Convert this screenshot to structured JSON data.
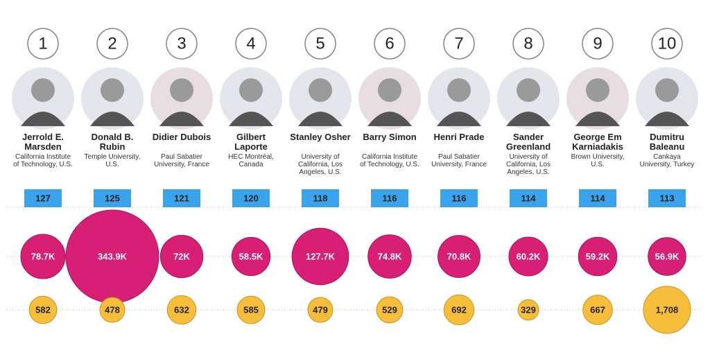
{
  "chart_data": {
    "type": "bubble",
    "ranks": [
      1,
      2,
      3,
      4,
      5,
      6,
      7,
      8,
      9,
      10
    ],
    "categories": [
      "Jerrold E. Marsden",
      "Donald B. Rubin",
      "Didier Dubois",
      "Gilbert Laporte",
      "Stanley Osher",
      "Barry Simon",
      "Henri Prade",
      "Sander Greenland",
      "George Em Karniadakis",
      "Dumitru Baleanu"
    ],
    "affiliations": [
      "California Institute of Technology, U.S.",
      "Temple University, U.S.",
      "Paul Sabatier University, France",
      "HEC Montréal, Canada",
      "University of California, Los Angeles, U.S.",
      "California Institute of Technology, U.S.",
      "Paul Sabatier University, France",
      "University of California, Los Angeles, U.S.",
      "Brown University, U.S.",
      "Cankaya University, Turkey"
    ],
    "series": [
      {
        "color": "#3aa3ec",
        "values": [
          127,
          125,
          121,
          120,
          118,
          116,
          116,
          114,
          114,
          113
        ]
      },
      {
        "color": "#d81f76",
        "values": [
          78700,
          343900,
          72000,
          58500,
          127700,
          74800,
          70800,
          60200,
          59200,
          56900
        ],
        "value_labels": [
          "78.7K",
          "343.9K",
          "72K",
          "58.5K",
          "127.7K",
          "74.8K",
          "70.8K",
          "60.2K",
          "59.2K",
          "56.9K"
        ]
      },
      {
        "color": "#f6be3b",
        "values": [
          582,
          478,
          632,
          585,
          479,
          529,
          692,
          329,
          667,
          1708
        ],
        "value_labels": [
          "582",
          "478",
          "632",
          "585",
          "479",
          "529",
          "692",
          "329",
          "667",
          "1,708"
        ]
      }
    ]
  }
}
